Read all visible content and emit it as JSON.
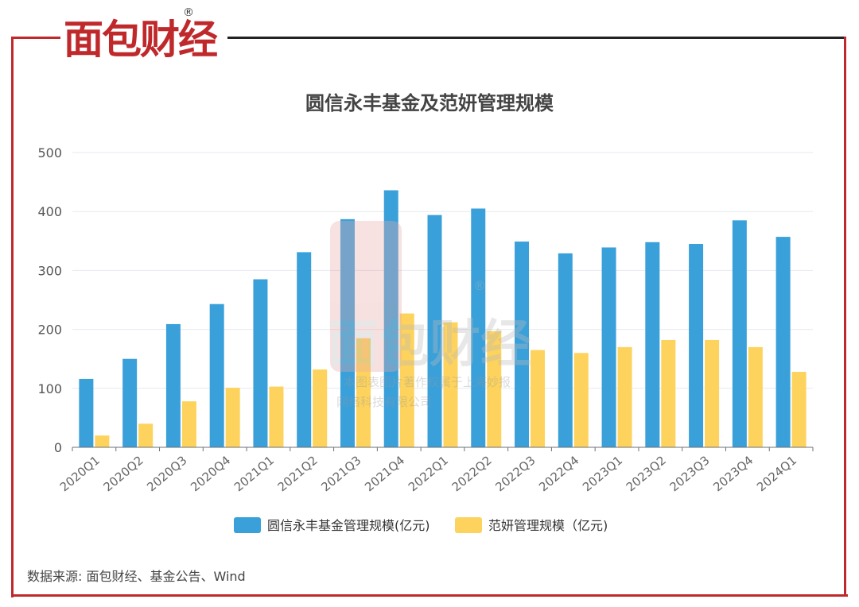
{
  "logo": {
    "text": "面包财经",
    "reg": "®"
  },
  "source": "数据来源: 面包财经、基金公告、Wind",
  "watermark": {
    "logo": "面包财经",
    "reg": "®",
    "line1": "本图表图片著作权属于上海妙报",
    "line2": "网络科技有限公司"
  },
  "colors": {
    "frame": "#c0292b",
    "series1": "#3aa0da",
    "series2": "#fdd35d"
  },
  "chart_data": {
    "type": "bar",
    "title": "圆信永丰基金及范妍管理规模",
    "categories": [
      "2020Q1",
      "2020Q2",
      "2020Q3",
      "2020Q4",
      "2021Q1",
      "2021Q2",
      "2021Q3",
      "2021Q4",
      "2022Q1",
      "2022Q2",
      "2022Q3",
      "2022Q4",
      "2023Q1",
      "2023Q2",
      "2023Q3",
      "2023Q4",
      "2024Q1"
    ],
    "series": [
      {
        "name": "圆信永丰基金管理规模(亿元)",
        "values": [
          116,
          150,
          209,
          243,
          285,
          331,
          387,
          436,
          394,
          405,
          349,
          329,
          339,
          348,
          345,
          385,
          357
        ]
      },
      {
        "name": "范妍管理规模（亿元)",
        "values": [
          20,
          40,
          78,
          101,
          103,
          132,
          185,
          227,
          212,
          197,
          165,
          160,
          170,
          182,
          182,
          170,
          128
        ]
      }
    ],
    "ylim": [
      0,
      500
    ],
    "yticks": [
      0,
      100,
      200,
      300,
      400,
      500
    ],
    "grid": true,
    "legend": "bottom"
  }
}
